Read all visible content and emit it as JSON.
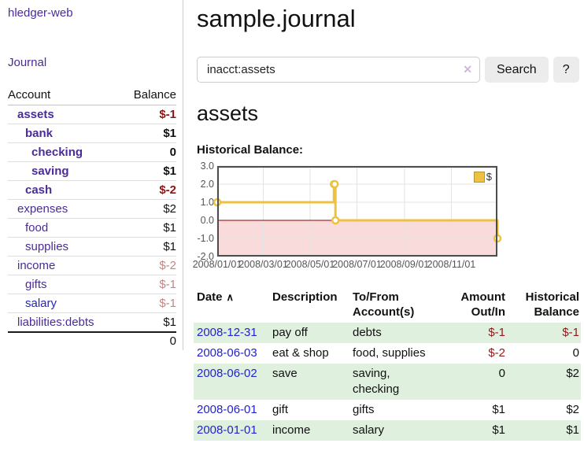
{
  "app": {
    "brand": "hledger-web"
  },
  "sidebar": {
    "journal_link": "Journal",
    "table": {
      "account_header": "Account",
      "balance_header": "Balance",
      "rows": [
        {
          "account": "assets",
          "balance": "$-1",
          "depth": 1,
          "emph": true,
          "tone": "neg-strong",
          "link": "visited"
        },
        {
          "account": "bank",
          "balance": "$1",
          "depth": 2,
          "emph": true,
          "tone": "normal",
          "link": "visited"
        },
        {
          "account": "checking",
          "balance": "0",
          "depth": 3,
          "emph": true,
          "tone": "normal",
          "link": "visited"
        },
        {
          "account": "saving",
          "balance": "$1",
          "depth": 3,
          "emph": true,
          "tone": "normal",
          "link": "visited"
        },
        {
          "account": "cash",
          "balance": "$-2",
          "depth": 2,
          "emph": true,
          "tone": "neg-strong",
          "link": "visited"
        },
        {
          "account": "expenses",
          "balance": "$2",
          "depth": 1,
          "emph": false,
          "tone": "normal",
          "link": "visited"
        },
        {
          "account": "food",
          "balance": "$1",
          "depth": 2,
          "emph": false,
          "tone": "normal",
          "link": "visited"
        },
        {
          "account": "supplies",
          "balance": "$1",
          "depth": 2,
          "emph": false,
          "tone": "normal",
          "link": "visited"
        },
        {
          "account": "income",
          "balance": "$-2",
          "depth": 1,
          "emph": false,
          "tone": "neg-muted",
          "link": "visited"
        },
        {
          "account": "gifts",
          "balance": "$-1",
          "depth": 2,
          "emph": false,
          "tone": "neg-muted",
          "link": "visited"
        },
        {
          "account": "salary",
          "balance": "$-1",
          "depth": 2,
          "emph": false,
          "tone": "neg-muted",
          "link": "unvisited"
        },
        {
          "account": "liabilities:debts",
          "balance": "$1",
          "depth": 1,
          "emph": false,
          "tone": "normal",
          "link": "visited"
        }
      ],
      "total": "0"
    }
  },
  "header": {
    "title": "sample.journal"
  },
  "search": {
    "value": "inacct:assets",
    "clear_glyph": "✕",
    "search_button": "Search",
    "help_button": "?"
  },
  "account_page": {
    "title": "assets",
    "chart_label": "Historical Balance:"
  },
  "chart_data": {
    "type": "line",
    "step": true,
    "title": "Historical Balance",
    "legend": [
      {
        "label": "$",
        "color": "#edc240"
      }
    ],
    "legend_position": "top-right",
    "series": [
      {
        "name": "$",
        "color": "#edc240",
        "points": [
          [
            "2008-01-01",
            1
          ],
          [
            "2008-06-01",
            2
          ],
          [
            "2008-06-02",
            2
          ],
          [
            "2008-06-03",
            0
          ],
          [
            "2008-12-31",
            -1
          ]
        ]
      }
    ],
    "x_start": "2008-01-01",
    "x_end": "2008-12-31",
    "x_ticks": [
      "2008/01/01",
      "2008/03/01",
      "2008/05/01",
      "2008/07/01",
      "2008/09/01",
      "2008/11/01"
    ],
    "y_ticks": [
      "3.0",
      "2.0",
      "1.0",
      "0.0",
      "-1.0",
      "-2.0"
    ],
    "ylim": [
      -2,
      3
    ],
    "grid": true,
    "gridline_color": "#e3e3e3",
    "negative_region_color": "#fadbdb",
    "zero_line_color": "#8b0000",
    "border_color": "#4d4d4d"
  },
  "register": {
    "sort_glyph": "∧",
    "columns": [
      {
        "label": "Date",
        "sorted": true,
        "align": "left"
      },
      {
        "label": "Description",
        "align": "left"
      },
      {
        "label": "To/From Account(s)",
        "align": "left"
      },
      {
        "label": "Amount Out/In",
        "align": "right"
      },
      {
        "label": "Historical Balance",
        "align": "right"
      }
    ],
    "rows": [
      {
        "date": "2008-12-31",
        "description": "pay off",
        "accounts": "debts",
        "amount": "$-1",
        "amount_negative": true,
        "balance": "$-1",
        "balance_negative": true,
        "shaded": true
      },
      {
        "date": "2008-06-03",
        "description": "eat & shop",
        "accounts": "food, supplies",
        "amount": "$-2",
        "amount_negative": true,
        "balance": "0",
        "balance_negative": false,
        "shaded": false
      },
      {
        "date": "2008-06-02",
        "description": "save",
        "accounts": "saving, checking",
        "amount": "0",
        "amount_negative": false,
        "balance": "$2",
        "balance_negative": false,
        "shaded": true
      },
      {
        "date": "2008-06-01",
        "description": "gift",
        "accounts": "gifts",
        "amount": "$1",
        "amount_negative": false,
        "balance": "$2",
        "balance_negative": false,
        "shaded": false
      },
      {
        "date": "2008-01-01",
        "description": "income",
        "accounts": "salary",
        "amount": "$1",
        "amount_negative": false,
        "balance": "$1",
        "balance_negative": false,
        "shaded": true
      }
    ]
  }
}
